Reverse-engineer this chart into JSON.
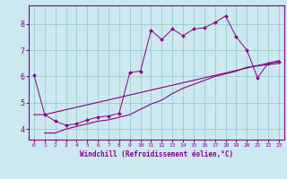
{
  "xlabel": "Windchill (Refroidissement éolien,°C)",
  "background_color": "#cce8f0",
  "grid_color": "#99cccc",
  "line_color": "#880088",
  "xlim": [
    -0.5,
    23.5
  ],
  "ylim": [
    3.6,
    8.7
  ],
  "xticks": [
    0,
    1,
    2,
    3,
    4,
    5,
    6,
    7,
    8,
    9,
    10,
    11,
    12,
    13,
    14,
    15,
    16,
    17,
    18,
    19,
    20,
    21,
    22,
    23
  ],
  "yticks": [
    4,
    5,
    6,
    7,
    8
  ],
  "line1_x": [
    0,
    1,
    2,
    3,
    4,
    5,
    6,
    7,
    8,
    9,
    10,
    11,
    12,
    13,
    14,
    15,
    16,
    17,
    18,
    19,
    20,
    21,
    22,
    23
  ],
  "line1_y": [
    6.05,
    4.55,
    4.3,
    4.15,
    4.2,
    4.35,
    4.45,
    4.5,
    4.6,
    6.15,
    6.2,
    7.75,
    7.4,
    7.8,
    7.55,
    7.8,
    7.85,
    8.05,
    8.3,
    7.5,
    7.0,
    5.95,
    6.5,
    6.55
  ],
  "line2_x": [
    0,
    1,
    23
  ],
  "line2_y": [
    4.55,
    4.55,
    6.6
  ],
  "line3_x": [
    1,
    2,
    3,
    4,
    5,
    6,
    7,
    8,
    9,
    10,
    11,
    12,
    13,
    14,
    15,
    16,
    17,
    18,
    19,
    20,
    21,
    22,
    23
  ],
  "line3_y": [
    3.85,
    3.85,
    4.0,
    4.1,
    4.2,
    4.3,
    4.35,
    4.45,
    4.55,
    4.75,
    4.95,
    5.1,
    5.35,
    5.55,
    5.7,
    5.85,
    6.0,
    6.1,
    6.2,
    6.35,
    6.4,
    6.45,
    6.5
  ]
}
